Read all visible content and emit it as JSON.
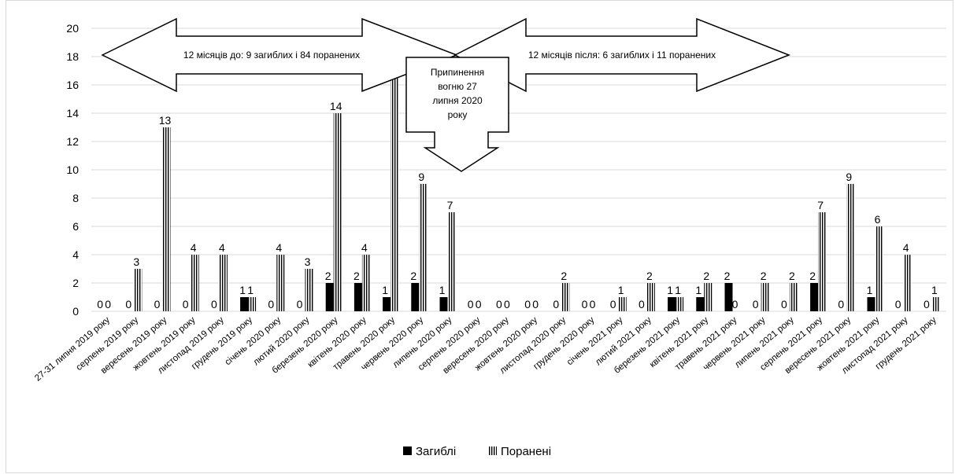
{
  "chart_data": {
    "type": "bar",
    "ylim": [
      0,
      20
    ],
    "y_ticks": [
      0,
      2,
      4,
      6,
      8,
      10,
      12,
      14,
      16,
      18,
      20
    ],
    "grid": true,
    "legend_position": "bottom",
    "categories": [
      "27-31 липня 2019 року",
      "серпень 2019 року",
      "вересень 2019 року",
      "жовтень 2019 року",
      "листопад 2019 року",
      "грудень 2019 року",
      "січень 2020 року",
      "лютий 2020 року",
      "березень 2020 року",
      "квітень 2020 року",
      "травень 2020 року",
      "червень 2020 року",
      "липень 2020 року",
      "серпень 2020 року",
      "вересень 2020 року",
      "жовтень 2020 року",
      "листопад 2020 року",
      "грудень 2020 року",
      "січень 2021 року",
      "лютий 2021 року",
      "березень 2021 року",
      "квітень 2021 року",
      "травень 2021 року",
      "червень 2021 року",
      "липень 2021 року",
      "серпень 2021 року",
      "вересень 2021 року",
      "жовтень 2021 року",
      "листопад 2021 року",
      "грудень 2021 року"
    ],
    "series": [
      {
        "name": "Загиблі",
        "pattern": "solid",
        "color": "#000000",
        "values": [
          0,
          0,
          0,
          0,
          0,
          1,
          0,
          0,
          2,
          2,
          1,
          2,
          1,
          0,
          0,
          0,
          0,
          0,
          0,
          0,
          1,
          1,
          2,
          0,
          0,
          2,
          0,
          1,
          0,
          0
        ]
      },
      {
        "name": "Поранені",
        "pattern": "vertical-stripes",
        "color": "#000000",
        "values": [
          0,
          3,
          13,
          4,
          4,
          1,
          4,
          3,
          14,
          4,
          19,
          9,
          7,
          0,
          0,
          0,
          2,
          0,
          1,
          2,
          1,
          2,
          0,
          2,
          2,
          7,
          9,
          6,
          4,
          1
        ]
      }
    ],
    "annotations": {
      "before": "12 місяців до: 9 загиблих і 84 поранених",
      "after": "12 місяців після: 6 загиблих і 11 поранених",
      "ceasefire": [
        "Припинення",
        "вогню 27",
        "липня 2020",
        "року"
      ]
    }
  }
}
